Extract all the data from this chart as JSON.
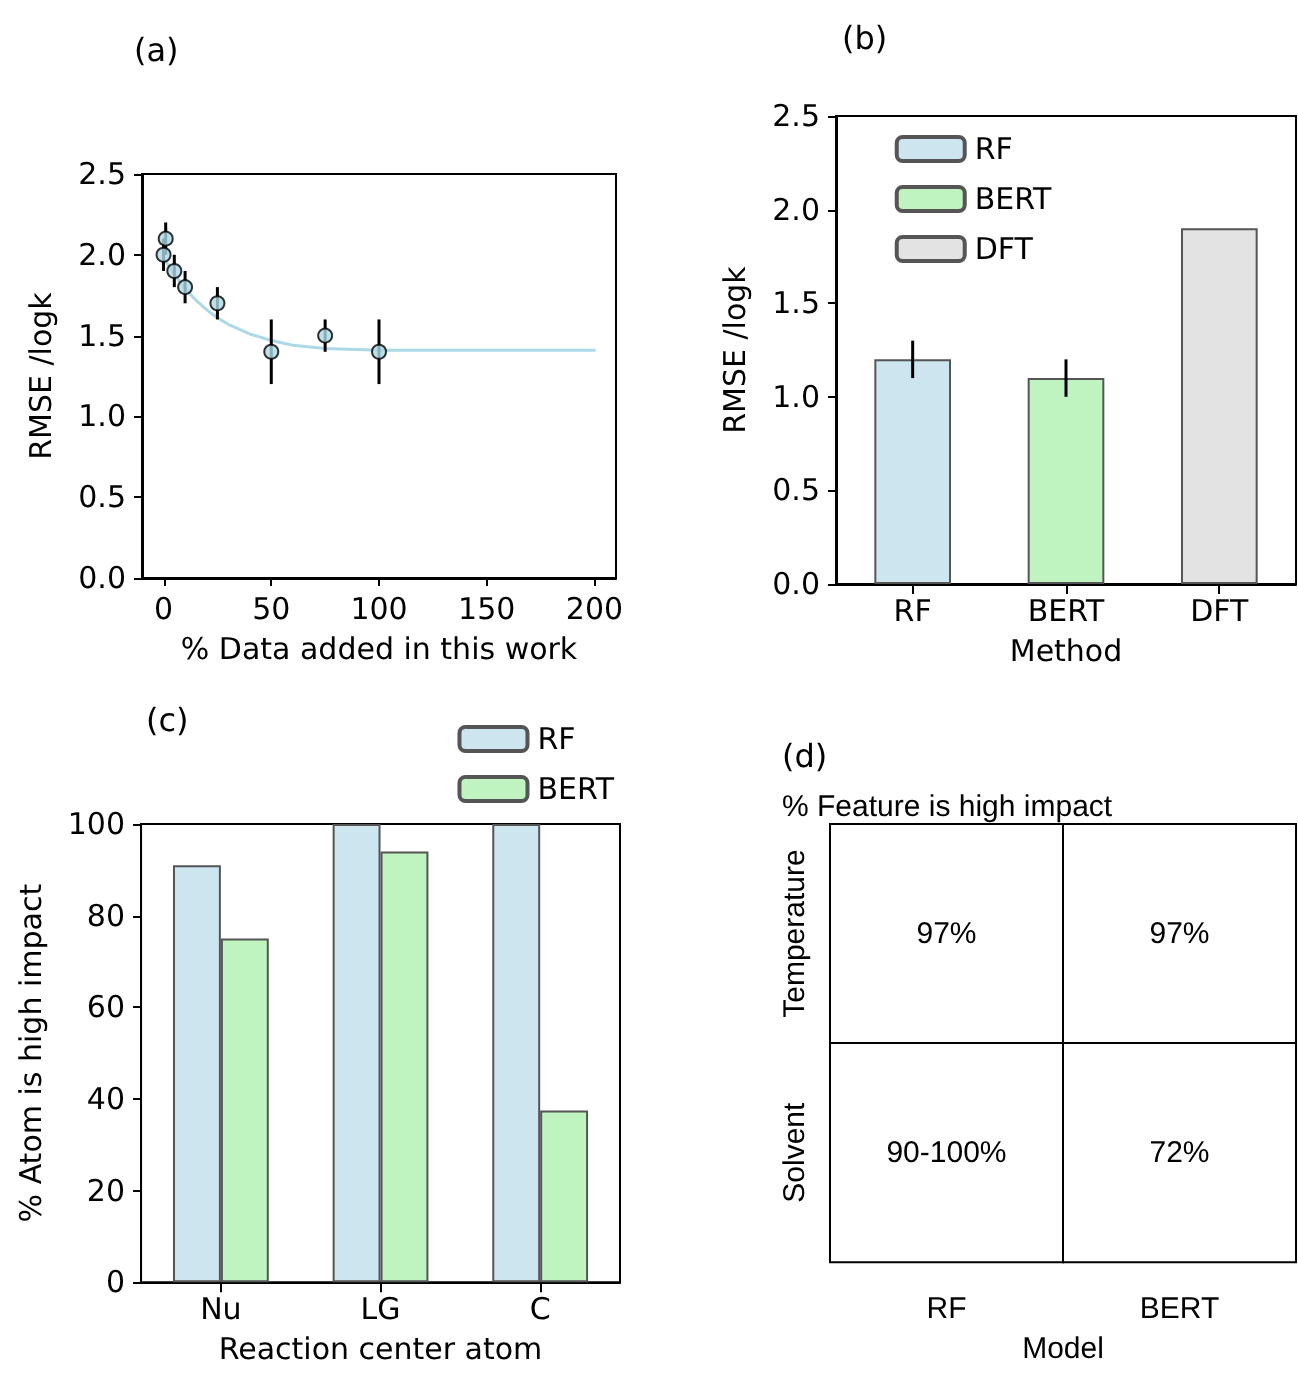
{
  "chart_data": [
    {
      "type": "scatter",
      "title": "(a)",
      "xlabel": "% Data added in this work",
      "ylabel": "RMSE /logk",
      "xlim": [
        -10,
        210
      ],
      "xticks": [
        0,
        50,
        100,
        150,
        200
      ],
      "ylim": [
        0,
        2.5
      ],
      "yticks": [
        {
          "value": 0,
          "label": "0.0"
        },
        0.5,
        {
          "value": 1,
          "label": "1.0"
        },
        1.5,
        {
          "value": 2,
          "label": "2.0"
        },
        2.5
      ],
      "grid": false,
      "legend": false,
      "marker": "circle",
      "series": [
        {
          "type": "scatter",
          "color": "#add8e6",
          "x": [
            0,
            1,
            5,
            10,
            25,
            50,
            75,
            100
          ],
          "values": [
            2.0,
            2.1,
            1.9,
            1.8,
            1.7,
            1.4,
            1.5,
            1.4
          ],
          "errors": [
            0.1,
            0.1,
            0.1,
            0.1,
            0.1,
            0.2,
            0.1,
            0.2
          ]
        },
        {
          "type": "line",
          "color": "#add8e6",
          "marker": "none",
          "x": [
            0,
            5,
            10,
            15,
            20,
            25,
            30,
            40,
            50,
            60,
            75,
            100,
            150,
            200
          ],
          "values": [
            1.98,
            1.88,
            1.79,
            1.72,
            1.66,
            1.61,
            1.57,
            1.51,
            1.47,
            1.44,
            1.42,
            1.41,
            1.41,
            1.41
          ]
        }
      ]
    },
    {
      "type": "bar",
      "title": "(b)",
      "xlabel": "Method",
      "ylabel": "RMSE /logk",
      "categories": [
        "RF",
        "BERT",
        "DFT"
      ],
      "ylim": [
        0,
        2.5
      ],
      "yticks": [
        {
          "value": 0,
          "label": "0.0"
        },
        0.5,
        {
          "value": 1,
          "label": "1.0"
        },
        1.5,
        {
          "value": 2,
          "label": "2.0"
        },
        2.5
      ],
      "grid": false,
      "legend": "top",
      "series": [
        {
          "name": "RF",
          "color": "#cde5ee",
          "values": [
            1.2,
            null,
            null
          ],
          "errors": [
            0.1,
            null,
            null
          ]
        },
        {
          "name": "BERT",
          "color": "#bff3bf",
          "values": [
            null,
            1.1,
            null
          ],
          "errors": [
            null,
            0.1,
            null
          ]
        },
        {
          "name": "DFT",
          "color": "#e3e3e3",
          "values": [
            null,
            null,
            1.9
          ]
        }
      ]
    },
    {
      "type": "bar",
      "title": "(c)",
      "xlabel": "Reaction center atom",
      "ylabel": "% Atom is high impact",
      "categories": [
        "Nu",
        "LG",
        "C"
      ],
      "ylim": [
        0,
        100
      ],
      "yticks": [
        0,
        20,
        40,
        60,
        80,
        100
      ],
      "grid": false,
      "legend": "top right",
      "series": [
        {
          "name": "RF",
          "color": "#cde5ee",
          "values": [
            91,
            100,
            100
          ]
        },
        {
          "name": "BERT",
          "color": "#bff3bf",
          "values": [
            75,
            94,
            37.5
          ]
        }
      ]
    },
    {
      "type": "heatmap",
      "title": "(d)",
      "subtitle": "% Feature is high impact",
      "xlabel": "Model",
      "categories": [
        "RF",
        "BERT"
      ],
      "y_categories": [
        "Temperature",
        "Solvent"
      ],
      "cells": [
        [
          null,
          null
        ],
        [
          null,
          null
        ]
      ],
      "cell_labels": [
        [
          "97%",
          "97%"
        ],
        [
          "90-100%",
          "72%"
        ]
      ]
    }
  ]
}
